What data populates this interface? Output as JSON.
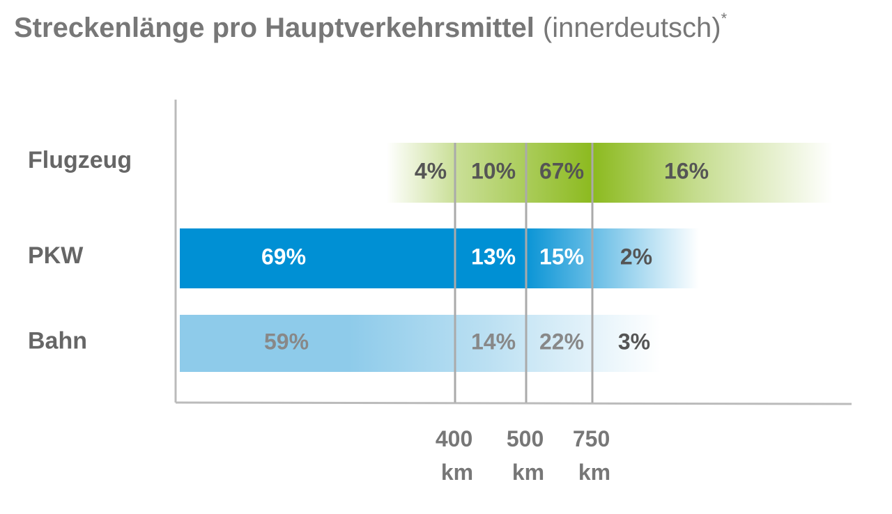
{
  "chart_data": {
    "type": "banded-bar",
    "title": "Streckenlänge pro Hauptverkehrsmittel",
    "subtitle": "(innerdeutsch)",
    "title_note": "*",
    "xticks": [
      {
        "value": 400,
        "label": "400 km"
      },
      {
        "value": 500,
        "label": "500 km"
      },
      {
        "value": 750,
        "label": "750 km"
      }
    ],
    "series": [
      {
        "name": "Flugzeug",
        "color": "#8cba1f",
        "values": [
          4,
          10,
          67,
          16
        ],
        "value_labels": [
          "4%",
          "10%",
          "67%",
          "16%"
        ]
      },
      {
        "name": "PKW",
        "color": "#0090d4",
        "values": [
          69,
          13,
          15,
          2
        ],
        "value_labels": [
          "69%",
          "13%",
          "15%",
          "2%"
        ]
      },
      {
        "name": "Bahn",
        "color": "#8ecbea",
        "values": [
          59,
          14,
          22,
          3
        ],
        "value_labels": [
          "59%",
          "14%",
          "22%",
          "3%"
        ]
      }
    ]
  }
}
